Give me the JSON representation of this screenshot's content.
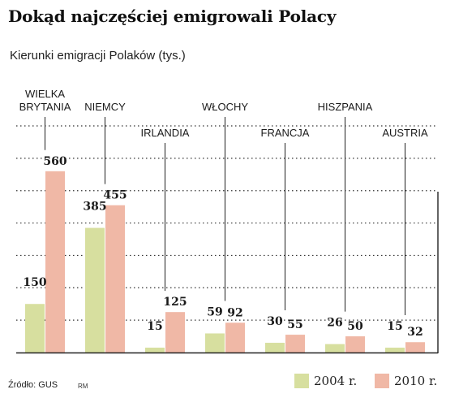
{
  "header": {
    "title": "Dokąd najczęściej emigrowali Polacy",
    "subtitle": "Kierunki emigracji Polaków (tys.)"
  },
  "footer": {
    "source": "Źródło: GUS",
    "credit": "RM"
  },
  "colors": {
    "series_2004": "#d7df9f",
    "series_2010": "#f0b8a6",
    "grid": "#333333",
    "axis": "#222222"
  },
  "chart_data": {
    "type": "bar",
    "title": "Dokąd najczęściej emigrowali Polacy",
    "subtitle": "Kierunki emigracji Polaków (tys.)",
    "categories": [
      [
        "WIELKA",
        "BRYTANIA"
      ],
      [
        "NIEMCY"
      ],
      [
        "IRLANDIA"
      ],
      [
        "WŁOCHY"
      ],
      [
        "FRANCJA"
      ],
      [
        "HISZPANIA"
      ],
      [
        "AUSTRIA"
      ]
    ],
    "series": [
      {
        "name": "2004 r.",
        "values": [
          150,
          385,
          15,
          59,
          30,
          26,
          15
        ],
        "color": "#d7df9f"
      },
      {
        "name": "2010 r.",
        "values": [
          560,
          455,
          125,
          92,
          55,
          50,
          32
        ],
        "color": "#f0b8a6"
      }
    ],
    "ylim": [
      0,
      700
    ],
    "grid": true,
    "legend": "bottom-right"
  }
}
